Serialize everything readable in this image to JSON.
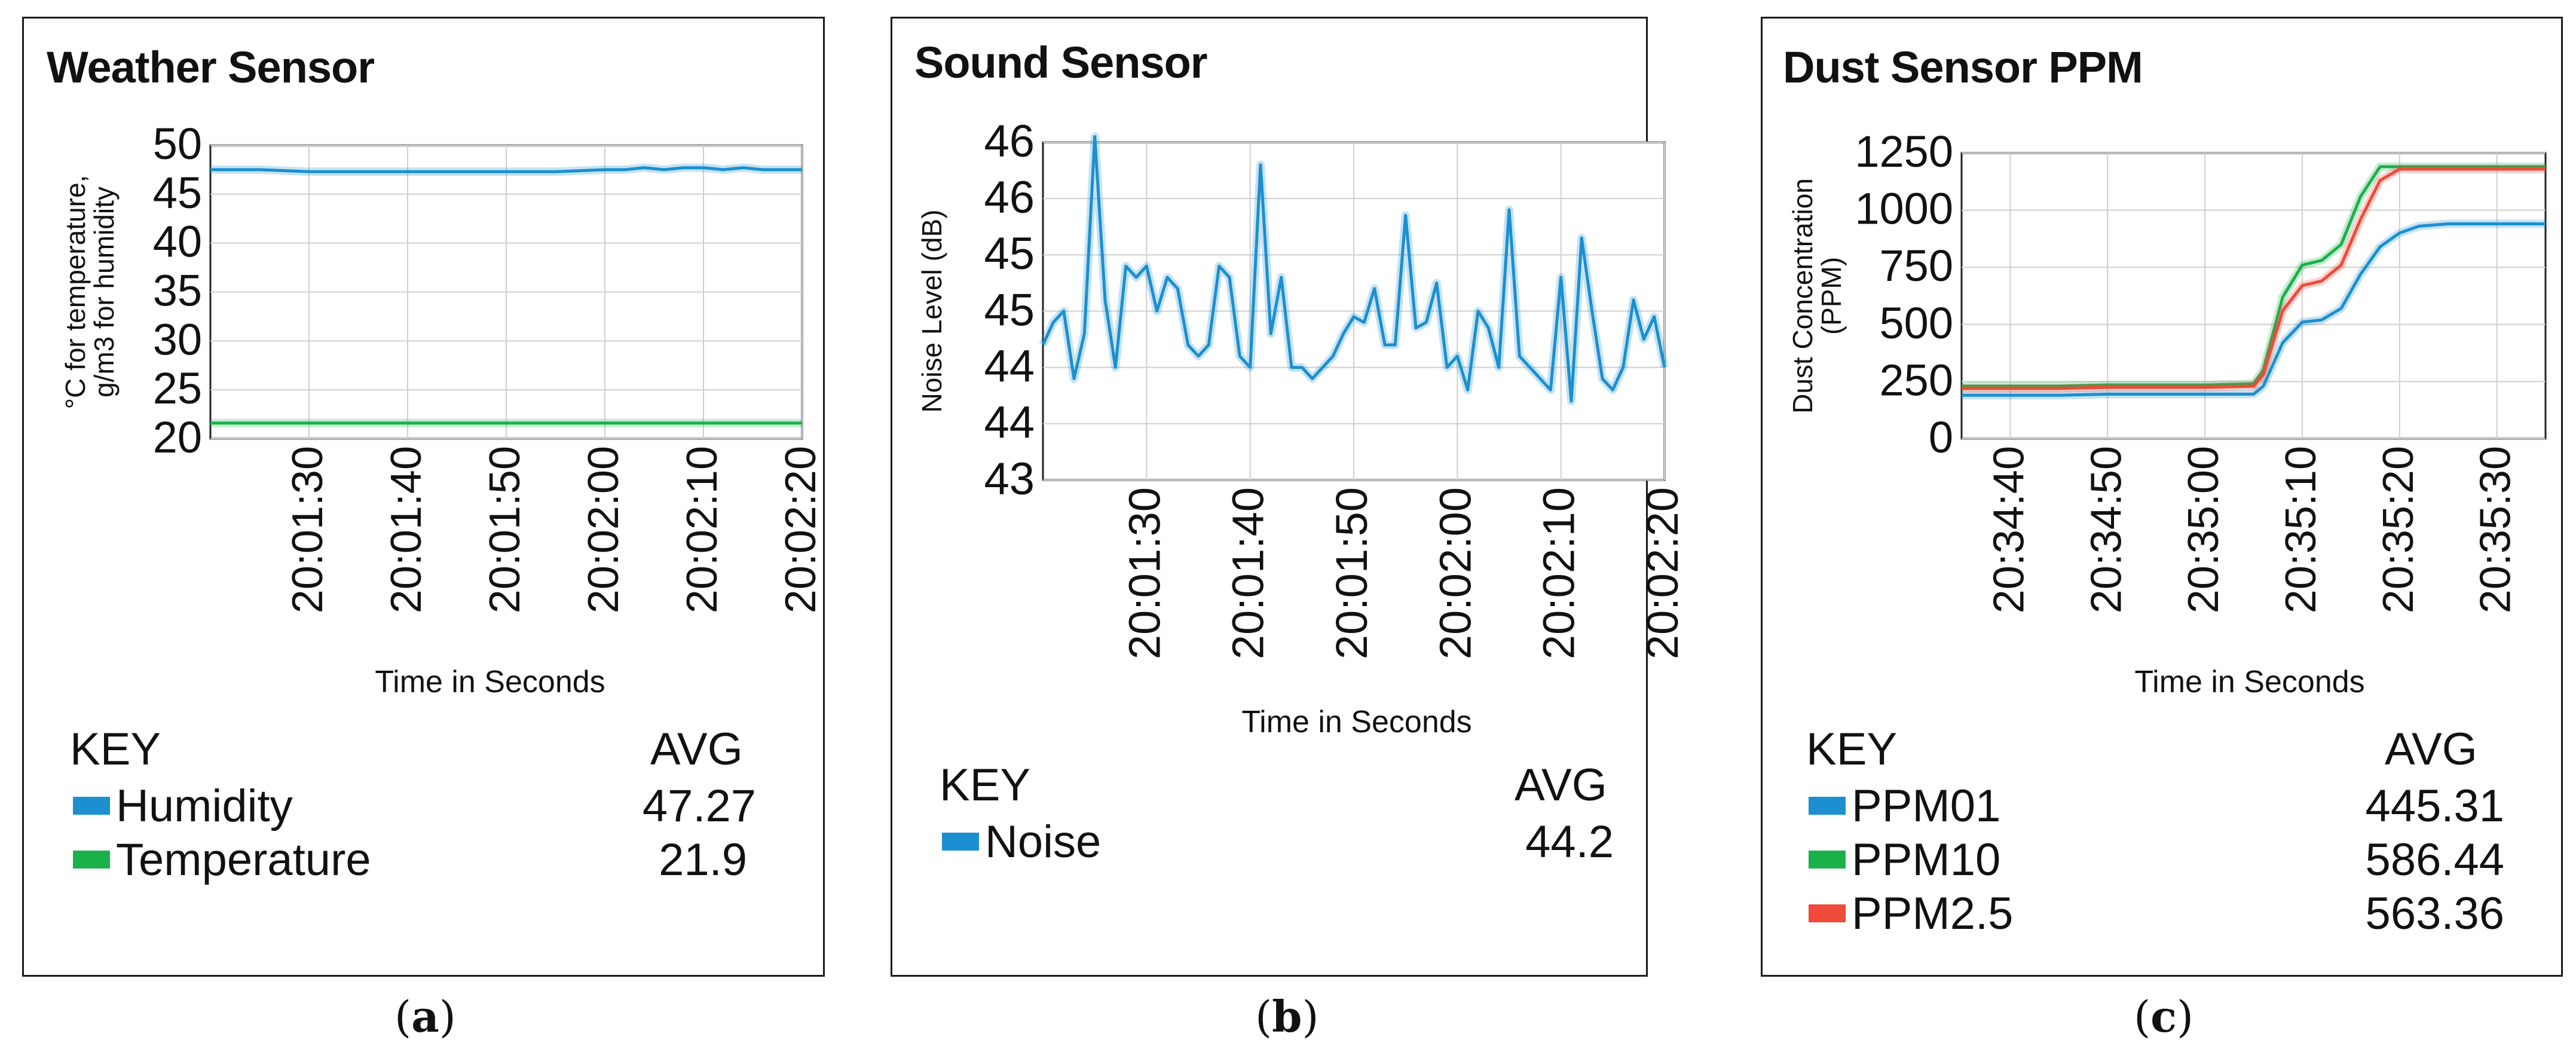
{
  "panels": [
    {
      "title": "Weather Sensor",
      "caption_letter": "a",
      "key_label": "KEY",
      "avg_label": "AVG",
      "legend": [
        {
          "name": "Humidity",
          "avg": "47.27",
          "color": "#1b8fd0"
        },
        {
          "name": "Temperature",
          "avg": "21.9",
          "color": "#1ab14a"
        }
      ]
    },
    {
      "title": "Sound Sensor",
      "caption_letter": "b",
      "key_label": "KEY",
      "avg_label": "AVG",
      "legend": [
        {
          "name": "Noise",
          "avg": "44.2",
          "color": "#1b8fd0"
        }
      ]
    },
    {
      "title": "Dust Sensor PPM",
      "caption_letter": "c",
      "key_label": "KEY",
      "avg_label": "AVG",
      "legend": [
        {
          "name": "PPM01",
          "avg": "445.31",
          "color": "#1b8fd0"
        },
        {
          "name": "PPM10",
          "avg": "586.44",
          "color": "#1ab14a"
        },
        {
          "name": "PPM2.5",
          "avg": "563.36",
          "color": "#f04a3a"
        }
      ]
    }
  ],
  "chart_data": [
    {
      "type": "line",
      "title": "Weather Sensor",
      "xlabel": "Time in Seconds",
      "ylabel": [
        "°C for temperature,",
        "g/m3 for humidity"
      ],
      "xlim": [
        80,
        140
      ],
      "ylim": [
        20,
        50
      ],
      "yticks": [
        20,
        25,
        30,
        35,
        40,
        45,
        50
      ],
      "xticks": [
        90,
        100,
        110,
        120,
        130,
        140
      ],
      "xtick_labels": [
        "20:01:30",
        "20:01:40",
        "20:01:50",
        "20:02:00",
        "20:02:10",
        "20:02:20"
      ],
      "x": [
        80,
        85,
        90,
        95,
        100,
        105,
        110,
        115,
        120,
        122,
        124,
        126,
        128,
        130,
        132,
        134,
        136,
        138,
        140
      ],
      "series": [
        {
          "name": "Humidity",
          "color": "#1b8fd0",
          "values": [
            47.5,
            47.5,
            47.3,
            47.3,
            47.3,
            47.3,
            47.3,
            47.3,
            47.5,
            47.5,
            47.7,
            47.5,
            47.7,
            47.7,
            47.5,
            47.7,
            47.5,
            47.5,
            47.5
          ]
        },
        {
          "name": "Temperature",
          "color": "#1ab14a",
          "values": [
            21.6,
            21.6,
            21.6,
            21.6,
            21.6,
            21.6,
            21.6,
            21.6,
            21.6,
            21.6,
            21.6,
            21.6,
            21.6,
            21.6,
            21.6,
            21.6,
            21.6,
            21.6,
            21.6
          ]
        }
      ]
    },
    {
      "type": "line",
      "title": "Sound Sensor",
      "xlabel": "Time in Seconds",
      "ylabel": "Noise Level (dB)",
      "xlim": [
        80,
        140
      ],
      "ylim": [
        43,
        46
      ],
      "yticks": [
        43,
        43.5,
        44,
        44.5,
        45,
        45.5,
        46
      ],
      "ytick_labels": [
        "43",
        "44",
        "44",
        "45",
        "45",
        "46",
        "46"
      ],
      "xticks": [
        90,
        100,
        110,
        120,
        130,
        140
      ],
      "xtick_labels": [
        "20:01:30",
        "20:01:40",
        "20:01:50",
        "20:02:00",
        "20:02:10",
        "20:02:20"
      ],
      "x": [
        80,
        81,
        82,
        83,
        84,
        85,
        86,
        87,
        88,
        89,
        90,
        91,
        92,
        93,
        94,
        95,
        96,
        97,
        98,
        99,
        100,
        101,
        102,
        103,
        104,
        105,
        106,
        107,
        108,
        109,
        110,
        111,
        112,
        113,
        114,
        115,
        116,
        117,
        118,
        119,
        120,
        121,
        122,
        123,
        124,
        125,
        126,
        127,
        128,
        129,
        130,
        131,
        132,
        133,
        134,
        135,
        136,
        137,
        138,
        139,
        140
      ],
      "series": [
        {
          "name": "Noise",
          "color": "#1b8fd0",
          "values": [
            44.2,
            44.4,
            44.5,
            43.9,
            44.3,
            46.05,
            44.6,
            44.0,
            44.9,
            44.8,
            44.9,
            44.5,
            44.8,
            44.7,
            44.2,
            44.1,
            44.2,
            44.9,
            44.8,
            44.1,
            44.0,
            45.8,
            44.3,
            44.8,
            44.0,
            44.0,
            43.9,
            44.0,
            44.1,
            44.3,
            44.45,
            44.4,
            44.7,
            44.2,
            44.2,
            45.35,
            44.35,
            44.4,
            44.75,
            44.0,
            44.1,
            43.8,
            44.5,
            44.35,
            44.0,
            45.4,
            44.1,
            44.0,
            43.9,
            43.8,
            44.8,
            43.7,
            45.15,
            44.5,
            43.9,
            43.8,
            44.0,
            44.6,
            44.25,
            44.45,
            44.0
          ]
        }
      ]
    },
    {
      "type": "line",
      "title": "Dust Sensor PPM",
      "xlabel": "Time in Seconds",
      "ylabel": [
        "Dust  Concentration",
        "(PPM)"
      ],
      "xlim": [
        35,
        95
      ],
      "ylim": [
        0,
        1250
      ],
      "yticks": [
        0,
        250,
        500,
        750,
        1000,
        1250
      ],
      "xticks": [
        40,
        50,
        60,
        70,
        80,
        90
      ],
      "xtick_labels": [
        "20:34:40",
        "20:34:50",
        "20:35:00",
        "20:35:10",
        "20:35:20",
        "20:35:30"
      ],
      "x": [
        35,
        40,
        45,
        50,
        55,
        60,
        65,
        66,
        68,
        70,
        72,
        74,
        76,
        78,
        80,
        82,
        85,
        90,
        95
      ],
      "series": [
        {
          "name": "PPM01",
          "color": "#1b8fd0",
          "values": [
            190,
            190,
            190,
            195,
            195,
            195,
            195,
            230,
            420,
            510,
            520,
            570,
            720,
            840,
            900,
            930,
            940,
            940,
            940
          ]
        },
        {
          "name": "PPM10",
          "color": "#1ab14a",
          "values": [
            230,
            230,
            230,
            235,
            235,
            235,
            240,
            300,
            620,
            760,
            780,
            850,
            1060,
            1190,
            1190,
            1190,
            1190,
            1190,
            1190
          ]
        },
        {
          "name": "PPM2.5",
          "color": "#f04a3a",
          "values": [
            220,
            220,
            220,
            225,
            225,
            225,
            230,
            280,
            560,
            670,
            690,
            760,
            960,
            1130,
            1180,
            1180,
            1180,
            1180,
            1180
          ]
        }
      ]
    }
  ]
}
